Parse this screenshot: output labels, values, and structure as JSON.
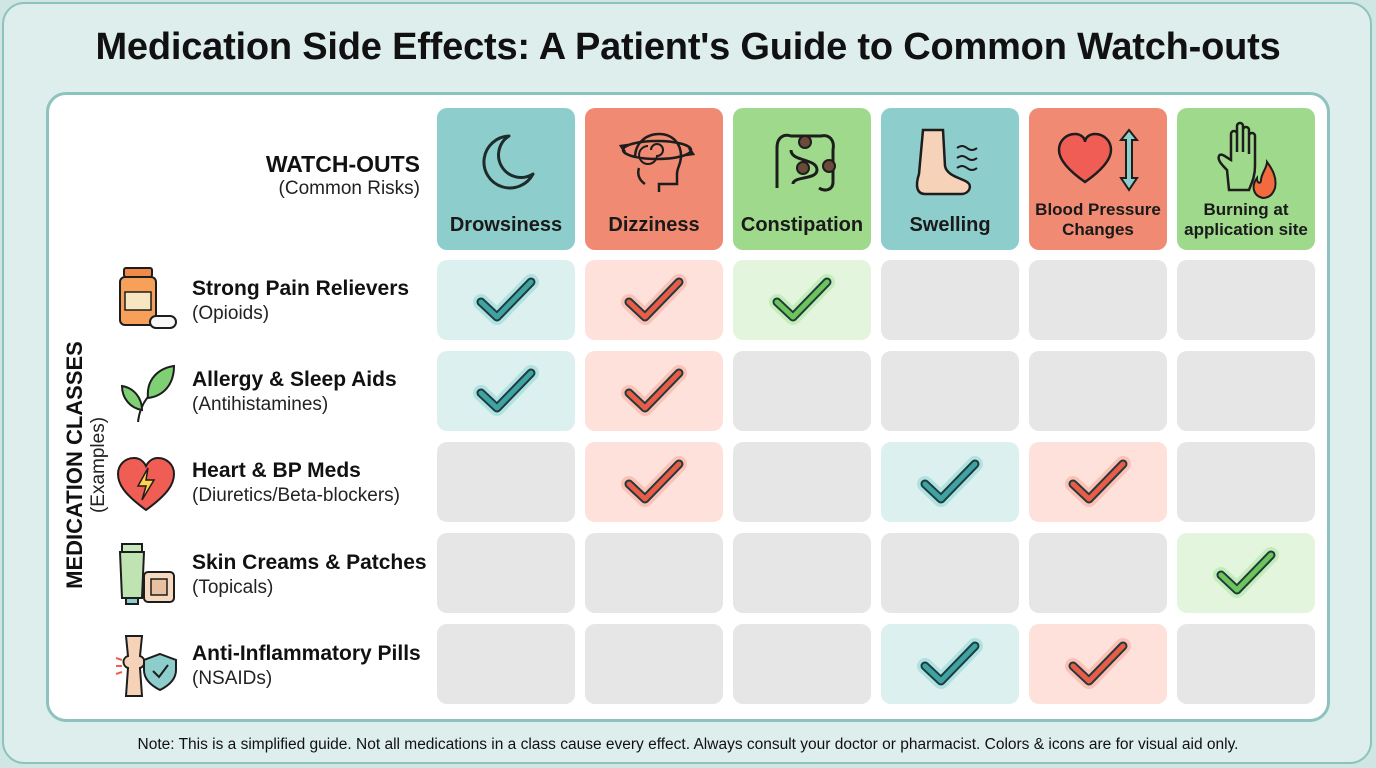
{
  "title": "Medication Side Effects: A Patient's Guide to Common Watch-outs",
  "axis_rows": {
    "label": "MEDICATION CLASSES",
    "sublabel": "(Examples)"
  },
  "axis_cols": {
    "label": "WATCH-OUTS",
    "sublabel": "(Common Risks)"
  },
  "colors": {
    "teal": "#8dcdcb",
    "red": "#f18a72",
    "green": "#9fd98b",
    "empty": "#e6e6e6"
  },
  "effects": [
    {
      "label": "Drowsiness",
      "icon": "moon-icon",
      "color": "teal"
    },
    {
      "label": "Dizziness",
      "icon": "spinning-head-icon",
      "color": "red"
    },
    {
      "label": "Constipation",
      "icon": "intestine-icon",
      "color": "green"
    },
    {
      "label": "Swelling",
      "icon": "swollen-foot-icon",
      "color": "teal"
    },
    {
      "label": "Blood Pressure Changes",
      "icon": "heart-arrows-icon",
      "color": "red"
    },
    {
      "label": "Burning at application site",
      "icon": "hand-flame-icon",
      "color": "green"
    }
  ],
  "classes": [
    {
      "name": "Strong Pain Relievers",
      "examples": "(Opioids)",
      "icon": "pill-bottle-icon"
    },
    {
      "name": "Allergy & Sleep Aids",
      "examples": "(Antihistamines)",
      "icon": "leaf-icon"
    },
    {
      "name": "Heart & BP Meds",
      "examples": "(Diuretics/Beta-blockers)",
      "icon": "heart-bolt-icon"
    },
    {
      "name": "Skin Creams & Patches",
      "examples": "(Topicals)",
      "icon": "cream-tube-icon"
    },
    {
      "name": "Anti-Inflammatory Pills",
      "examples": "(NSAIDs)",
      "icon": "joint-shield-icon"
    }
  ],
  "matrix": [
    [
      true,
      true,
      true,
      false,
      false,
      false
    ],
    [
      true,
      true,
      false,
      false,
      false,
      false
    ],
    [
      false,
      true,
      false,
      true,
      true,
      false
    ],
    [
      false,
      false,
      false,
      false,
      false,
      true
    ],
    [
      false,
      false,
      false,
      true,
      true,
      false
    ]
  ],
  "note": "Note: This is a simplified guide. Not all medications in a class cause every effect. Always consult your doctor or pharmacist. Colors & icons are for visual aid only."
}
